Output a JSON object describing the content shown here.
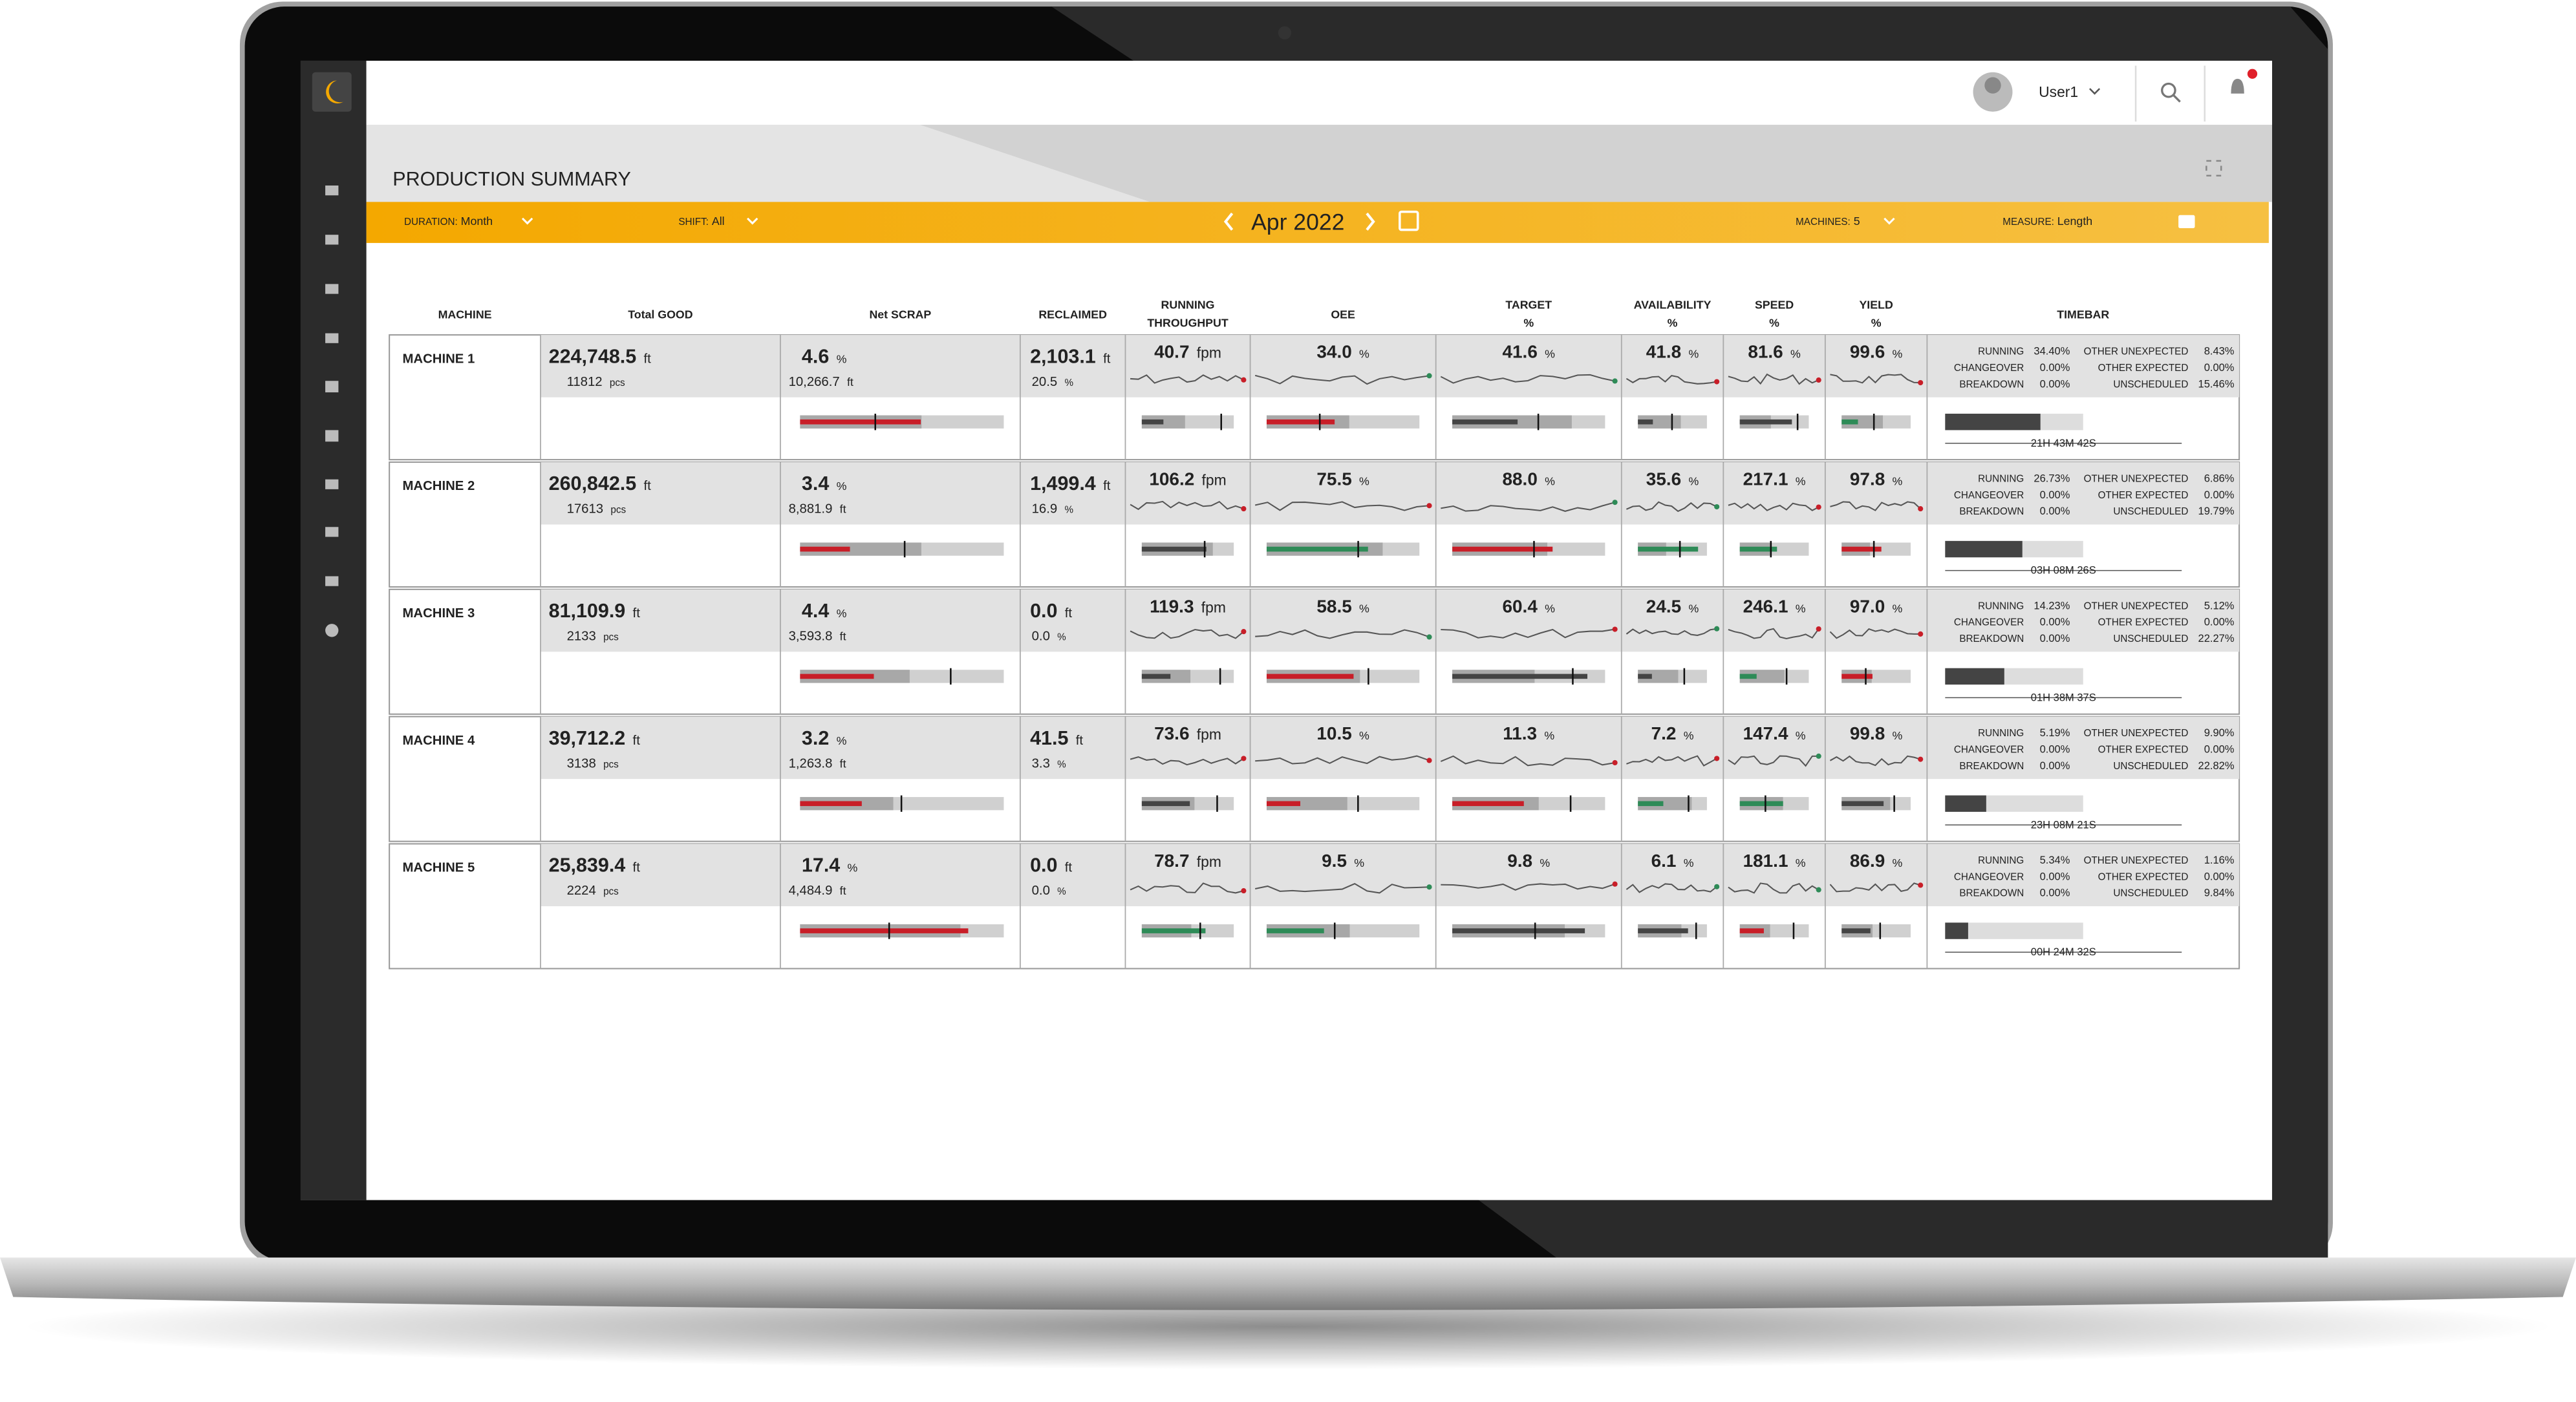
{
  "header": {
    "user": "User1",
    "title": "PRODUCTION SUMMARY"
  },
  "filters": {
    "duration_label": "DURATION:",
    "duration": "Month",
    "shift_label": "SHIFT:",
    "shift": "All",
    "period": "Apr 2022",
    "machines_label": "MACHINES:",
    "machines": "5",
    "measure_label": "MEASURE:",
    "measure": "Length"
  },
  "units": {
    "ft": "ft",
    "pcs": "pcs",
    "pct": "%",
    "fpm": "fpm"
  },
  "table": {
    "columns": [
      [
        "MACHINE"
      ],
      [
        "Total GOOD"
      ],
      [
        "Net SCRAP"
      ],
      [
        "RECLAIMED"
      ],
      [
        "RUNNING",
        "THROUGHPUT"
      ],
      [
        "OEE"
      ],
      [
        "TARGET",
        "%"
      ],
      [
        "AVAILABILITY",
        "%"
      ],
      [
        "SPEED",
        "%"
      ],
      [
        "YIELD",
        "%"
      ],
      [
        "TIMEBAR"
      ]
    ],
    "timebar_labels": [
      "RUNNING",
      "CHANGEOVER",
      "BREAKDOWN",
      "OTHER UNEXPECTED",
      "OTHER EXPECTED",
      "UNSCHEDULED"
    ],
    "rows": [
      {
        "name": "MACHINE 1",
        "good": "224,748.5",
        "pcs": "11812",
        "scrap": "4.6",
        "scrap_len": "10,266.7",
        "reclaimed": "2,103.1",
        "reclaimed_pct": "20.5",
        "throughput": "40.7",
        "oee": "34.0",
        "target": "41.6",
        "availability": "41.8",
        "speed": "81.6",
        "yield": "99.6",
        "timebar": [
          "34.40%",
          "0.00%",
          "0.00%",
          "8.43%",
          "0.00%",
          "15.46%"
        ],
        "duration": "21H 43M 42S"
      },
      {
        "name": "MACHINE 2",
        "good": "260,842.5",
        "pcs": "17613",
        "scrap": "3.4",
        "scrap_len": "8,881.9",
        "reclaimed": "1,499.4",
        "reclaimed_pct": "16.9",
        "throughput": "106.2",
        "oee": "75.5",
        "target": "88.0",
        "availability": "35.6",
        "speed": "217.1",
        "yield": "97.8",
        "timebar": [
          "26.73%",
          "0.00%",
          "0.00%",
          "6.86%",
          "0.00%",
          "19.79%"
        ],
        "duration": "03H 08M 26S"
      },
      {
        "name": "MACHINE 3",
        "good": "81,109.9",
        "pcs": "2133",
        "scrap": "4.4",
        "scrap_len": "3,593.8",
        "reclaimed": "0.0",
        "reclaimed_pct": "0.0",
        "throughput": "119.3",
        "oee": "58.5",
        "target": "60.4",
        "availability": "24.5",
        "speed": "246.1",
        "yield": "97.0",
        "timebar": [
          "14.23%",
          "0.00%",
          "0.00%",
          "5.12%",
          "0.00%",
          "22.27%"
        ],
        "duration": "01H 38M 37S"
      },
      {
        "name": "MACHINE 4",
        "good": "39,712.2",
        "pcs": "3138",
        "scrap": "3.2",
        "scrap_len": "1,263.8",
        "reclaimed": "41.5",
        "reclaimed_pct": "3.3",
        "throughput": "73.6",
        "oee": "10.5",
        "target": "11.3",
        "availability": "7.2",
        "speed": "147.4",
        "yield": "99.8",
        "timebar": [
          "5.19%",
          "0.00%",
          "0.00%",
          "9.90%",
          "0.00%",
          "22.82%"
        ],
        "duration": "23H 08M 21S"
      },
      {
        "name": "MACHINE 5",
        "good": "25,839.4",
        "pcs": "2224",
        "scrap": "17.4",
        "scrap_len": "4,484.9",
        "reclaimed": "0.0",
        "reclaimed_pct": "0.0",
        "throughput": "78.7",
        "oee": "9.5",
        "target": "9.8",
        "availability": "6.1",
        "speed": "181.1",
        "yield": "86.9",
        "timebar": [
          "5.34%",
          "0.00%",
          "0.00%",
          "1.16%",
          "0.00%",
          "9.84%"
        ],
        "duration": "00H 24M 32S"
      }
    ]
  }
}
